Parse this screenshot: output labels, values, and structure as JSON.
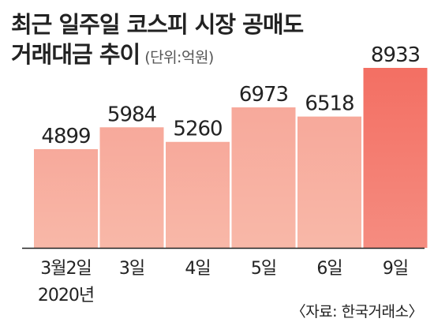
{
  "title_line1": "최근 일주일 코스피 시장 공매도",
  "title_line2": "거래대금 추이",
  "unit": "(단위:억원)",
  "source": "〈자료: 한국거래소〉",
  "colors": {
    "bar_gradient_top": "#f7a99b",
    "bar_gradient_bottom": "#f8b8a8",
    "highlight_top": "#f36f63",
    "highlight_bottom": "#f58c80",
    "baseline": "#222222"
  },
  "chart_data": {
    "type": "bar",
    "categories": [
      "3월2일\n2020년",
      "3일",
      "4일",
      "5일",
      "6일",
      "9일"
    ],
    "values": [
      4899,
      5984,
      5260,
      6973,
      6518,
      8933
    ],
    "value_labels": [
      "4899",
      "5984",
      "5260",
      "6973",
      "6518",
      "8933"
    ],
    "highlight_index": 5,
    "ylim": [
      0,
      8933
    ]
  }
}
